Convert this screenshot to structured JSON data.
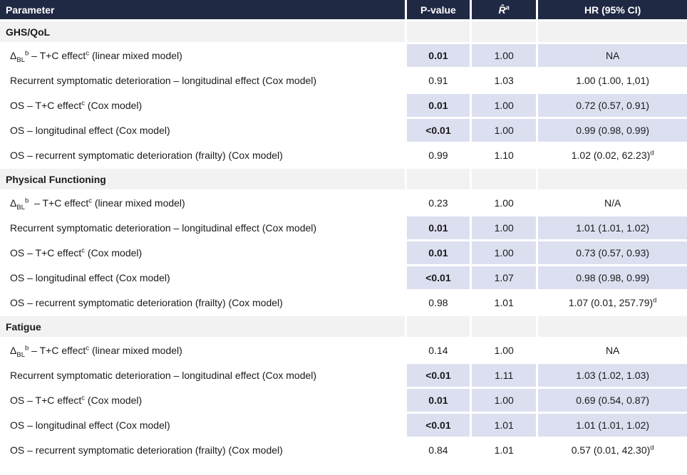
{
  "colors": {
    "header_bg": "#202944",
    "header_text": "#ffffff",
    "section_bg": "#f2f2f2",
    "highlight_bg": "#dcdff0",
    "body_text": "#1a1a1a"
  },
  "table": {
    "columns": [
      {
        "key": "param",
        "label": "Parameter"
      },
      {
        "key": "p",
        "label": "P-value"
      },
      {
        "key": "r",
        "label": "R̂^{a}"
      },
      {
        "key": "hr",
        "label": "HR (95% CI)"
      }
    ],
    "sections": [
      {
        "title": "GHS/QoL",
        "rows": [
          {
            "param": "Δ_{BL}^{b} – T+C effect^{c} (linear mixed model)",
            "p": "0.01",
            "r": "1.00",
            "hr": "NA",
            "significant": true
          },
          {
            "param": "Recurrent symptomatic deterioration – longitudinal effect (Cox model)",
            "p": "0.91",
            "r": "1.03",
            "hr": "1.00 (1.00, 1,01)",
            "significant": false
          },
          {
            "param": "OS – T+C effect^{c} (Cox model)",
            "p": "0.01",
            "r": "1.00",
            "hr": "0.72 (0.57, 0.91)",
            "significant": true
          },
          {
            "param": "OS – longitudinal effect (Cox model)",
            "p": "<0.01",
            "r": "1.00",
            "hr": "0.99 (0.98, 0.99)",
            "significant": true
          },
          {
            "param": "OS – recurrent symptomatic deterioration (frailty) (Cox model)",
            "p": "0.99",
            "r": "1.10",
            "hr": "1.02 (0.02, 62.23)^{d}",
            "significant": false
          }
        ]
      },
      {
        "title": "Physical Functioning",
        "rows": [
          {
            "param": "Δ_{BL}^{b}  – T+C effect^{c} (linear mixed model)",
            "p": "0.23",
            "r": "1.00",
            "hr": "N/A",
            "significant": false
          },
          {
            "param": "Recurrent symptomatic deterioration – longitudinal effect (Cox model)",
            "p": "0.01",
            "r": "1.00",
            "hr": "1.01 (1.01, 1.02)",
            "significant": true
          },
          {
            "param": "OS – T+C effect^{c} (Cox model)",
            "p": "0.01",
            "r": "1.00",
            "hr": "0.73 (0.57, 0.93)",
            "significant": true
          },
          {
            "param": "OS – longitudinal effect (Cox model)",
            "p": "<0.01",
            "r": "1.07",
            "hr": "0.98 (0.98, 0.99)",
            "significant": true
          },
          {
            "param": "OS – recurrent symptomatic deterioration (frailty) (Cox model)",
            "p": "0.98",
            "r": "1.01",
            "hr": "1.07 (0.01, 257.79)^{d}",
            "significant": false
          }
        ]
      },
      {
        "title": "Fatigue",
        "rows": [
          {
            "param": "Δ_{BL}^{b} – T+C effect^{c} (linear mixed model)",
            "p": "0.14",
            "r": "1.00",
            "hr": "NA",
            "significant": false
          },
          {
            "param": "Recurrent symptomatic deterioration – longitudinal effect (Cox model)",
            "p": "<0.01",
            "r": "1.11",
            "hr": "1.03 (1.02, 1.03)",
            "significant": true
          },
          {
            "param": "OS – T+C effect^{c} (Cox model)",
            "p": "0.01",
            "r": "1.00",
            "hr": "0.69 (0.54, 0.87)",
            "significant": true
          },
          {
            "param": "OS – longitudinal effect (Cox model)",
            "p": "<0.01",
            "r": "1.01",
            "hr": "1.01 (1.01, 1.02)",
            "significant": true
          },
          {
            "param": "OS – recurrent symptomatic deterioration (frailty) (Cox model)",
            "p": "0.84",
            "r": "1.01",
            "hr": "0.57 (0.01, 42.30)^{d}",
            "significant": false
          }
        ]
      }
    ]
  }
}
